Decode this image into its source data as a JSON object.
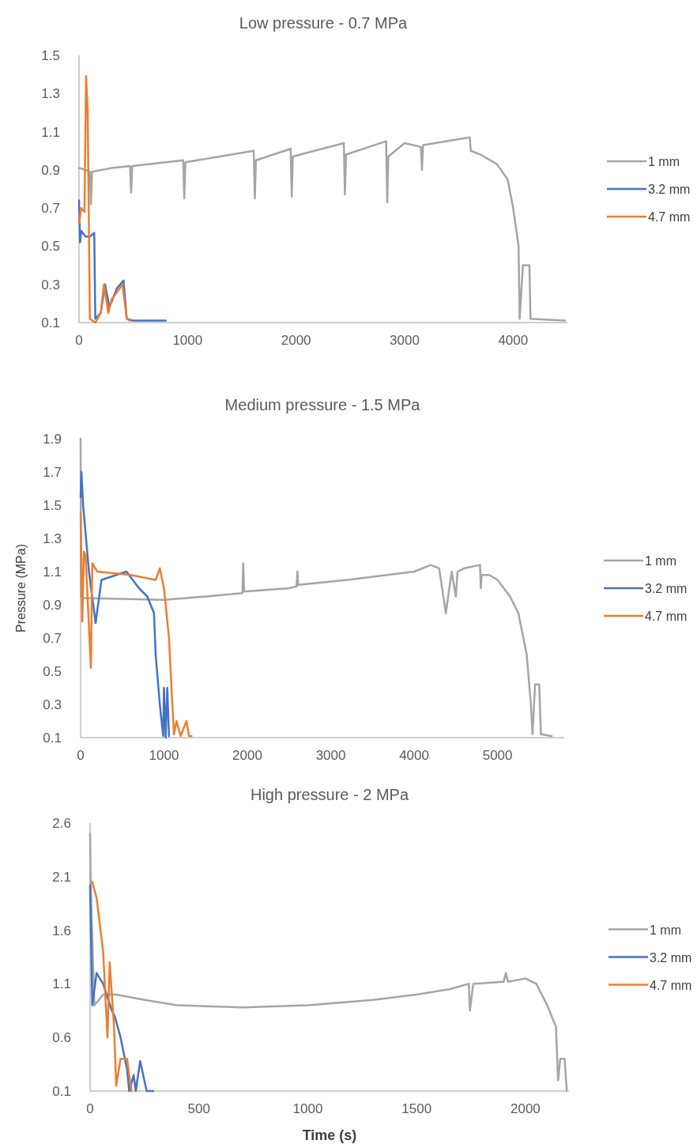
{
  "chart_data": [
    {
      "type": "line",
      "title": "Low pressure - 0.7 MPa",
      "xlim": [
        0,
        4500
      ],
      "xticks": [
        0,
        1000,
        2000,
        3000,
        4000
      ],
      "ylim": [
        0.1,
        1.5
      ],
      "yticks": [
        {
          "value": 0.1,
          "label": "0.1"
        },
        {
          "value": 0.3,
          "label": "0.3"
        },
        {
          "value": 0.5,
          "label": "0.5"
        },
        {
          "value": 0.7,
          "label": "0.7"
        },
        {
          "value": 0.9,
          "label": "0.9"
        },
        {
          "value": 1.1,
          "label": "1.1"
        },
        {
          "value": 1.3,
          "label": "1.3"
        },
        {
          "value": 1.5,
          "label": "1.5"
        }
      ],
      "grid": false,
      "legend": "right",
      "series": [
        {
          "name": "1 mm",
          "color": "#a5a5a5",
          "x": [
            0,
            60,
            100,
            110,
            120,
            300,
            470,
            480,
            490,
            960,
            970,
            980,
            1610,
            1620,
            1630,
            1950,
            1960,
            1970,
            2440,
            2450,
            2460,
            2830,
            2840,
            2850,
            3000,
            3150,
            3160,
            3170,
            3600,
            3610,
            3700,
            3850,
            3950,
            4000,
            4050,
            4060,
            4090,
            4150,
            4160,
            4480
          ],
          "values": [
            0.91,
            0.9,
            0.89,
            0.72,
            0.89,
            0.91,
            0.92,
            0.78,
            0.92,
            0.95,
            0.75,
            0.94,
            1.0,
            0.75,
            0.95,
            1.01,
            0.76,
            0.97,
            1.04,
            0.77,
            0.98,
            1.05,
            0.73,
            0.97,
            1.04,
            1.02,
            0.9,
            1.03,
            1.07,
            1.0,
            0.98,
            0.93,
            0.85,
            0.7,
            0.5,
            0.12,
            0.4,
            0.4,
            0.12,
            0.11
          ]
        },
        {
          "name": "3.2 mm",
          "color": "#4472c4",
          "x": [
            0,
            10,
            20,
            60,
            100,
            140,
            150,
            200,
            240,
            280,
            350,
            410,
            440,
            500,
            800
          ],
          "values": [
            0.74,
            0.52,
            0.58,
            0.55,
            0.55,
            0.57,
            0.12,
            0.15,
            0.3,
            0.18,
            0.28,
            0.32,
            0.12,
            0.11,
            0.11
          ]
        },
        {
          "name": "4.7 mm",
          "color": "#ed7d31",
          "x": [
            0,
            20,
            50,
            65,
            80,
            100,
            150,
            200,
            230,
            270,
            300,
            400,
            440,
            470
          ],
          "values": [
            0.62,
            0.7,
            0.68,
            1.39,
            1.2,
            0.12,
            0.1,
            0.15,
            0.3,
            0.15,
            0.22,
            0.3,
            0.12,
            0.11
          ]
        }
      ]
    },
    {
      "type": "line",
      "title": "Medium pressure - 1.5 MPa",
      "ylabel": "Pressure (MPa)",
      "xlim": [
        0,
        5800
      ],
      "xticks": [
        0,
        1000,
        2000,
        3000,
        4000,
        5000
      ],
      "ylim": [
        0.1,
        1.9
      ],
      "yticks": [
        {
          "value": 0.1,
          "label": "0.1"
        },
        {
          "value": 0.3,
          "label": "0.3"
        },
        {
          "value": 0.5,
          "label": "0.5"
        },
        {
          "value": 0.7,
          "label": "0.7"
        },
        {
          "value": 0.9,
          "label": "0.9"
        },
        {
          "value": 1.1,
          "label": "1.1"
        },
        {
          "value": 1.3,
          "label": "1.3"
        },
        {
          "value": 1.5,
          "label": "1.5"
        },
        {
          "value": 1.7,
          "label": "1.7"
        },
        {
          "value": 1.9,
          "label": "1.9"
        }
      ],
      "grid": false,
      "legend": "right",
      "series": [
        {
          "name": "1 mm",
          "color": "#a5a5a5",
          "x": [
            0,
            5,
            50,
            1000,
            1500,
            1940,
            1950,
            1960,
            2500,
            2590,
            2600,
            2610,
            3200,
            4000,
            4200,
            4300,
            4380,
            4450,
            4500,
            4520,
            4600,
            4790,
            4800,
            4810,
            4900,
            5000,
            5150,
            5250,
            5350,
            5400,
            5420,
            5450,
            5500,
            5520,
            5650
          ],
          "values": [
            1.9,
            0.95,
            0.94,
            0.93,
            0.95,
            0.97,
            1.15,
            0.98,
            1.0,
            1.01,
            1.1,
            1.02,
            1.05,
            1.1,
            1.14,
            1.12,
            0.85,
            1.1,
            0.95,
            1.1,
            1.12,
            1.14,
            1.0,
            1.08,
            1.08,
            1.05,
            0.95,
            0.85,
            0.6,
            0.3,
            0.12,
            0.42,
            0.42,
            0.12,
            0.11
          ]
        },
        {
          "name": "3.2 mm",
          "color": "#4472c4",
          "x": [
            0,
            10,
            30,
            100,
            180,
            250,
            550,
            700,
            800,
            880,
            900,
            950,
            990,
            1000,
            1020,
            1040,
            1060
          ],
          "values": [
            1.55,
            1.7,
            1.5,
            1.1,
            0.79,
            1.05,
            1.1,
            1.0,
            0.95,
            0.85,
            0.6,
            0.3,
            0.11,
            0.4,
            0.1,
            0.4,
            0.11
          ]
        },
        {
          "name": "4.7 mm",
          "color": "#ed7d31",
          "x": [
            0,
            20,
            40,
            60,
            123,
            140,
            200,
            600,
            900,
            950,
            1000,
            1060,
            1100,
            1120,
            1150,
            1200,
            1270,
            1300,
            1330
          ],
          "values": [
            1.45,
            0.8,
            1.22,
            1.2,
            0.52,
            1.15,
            1.1,
            1.08,
            1.05,
            1.12,
            1.0,
            0.7,
            0.3,
            0.12,
            0.2,
            0.11,
            0.2,
            0.11,
            0.11
          ]
        }
      ]
    },
    {
      "type": "line",
      "title": "High pressure - 2 MPa",
      "xlabel": "Time (s)",
      "xlim": [
        0,
        2200
      ],
      "xticks": [
        0,
        500,
        1000,
        1500,
        2000
      ],
      "ylim": [
        0.1,
        2.6
      ],
      "yticks": [
        0.1,
        0.6,
        1.1,
        1.6,
        2.1,
        2.6
      ],
      "grid": false,
      "legend": "right",
      "series": [
        {
          "name": "1 mm",
          "color": "#a5a5a5",
          "x": [
            0,
            3,
            20,
            60,
            120,
            250,
            400,
            700,
            1000,
            1300,
            1500,
            1650,
            1740,
            1745,
            1760,
            1900,
            1910,
            1920,
            2000,
            2050,
            2100,
            2140,
            2150,
            2160,
            2180,
            2190
          ],
          "values": [
            2.5,
            2.0,
            0.9,
            1.0,
            1.0,
            0.95,
            0.9,
            0.88,
            0.9,
            0.95,
            1.0,
            1.05,
            1.1,
            0.85,
            1.1,
            1.12,
            1.2,
            1.12,
            1.15,
            1.1,
            0.9,
            0.7,
            0.2,
            0.4,
            0.4,
            0.1
          ]
        },
        {
          "name": "3.2 mm",
          "color": "#4472c4",
          "x": [
            0,
            10,
            30,
            60,
            100,
            113,
            140,
            170,
            180,
            200,
            210,
            230,
            260,
            290
          ],
          "values": [
            2.02,
            0.9,
            1.2,
            1.1,
            0.85,
            0.8,
            0.6,
            0.3,
            0.1,
            0.25,
            0.1,
            0.38,
            0.1,
            0.1
          ]
        },
        {
          "name": "4.7 mm",
          "color": "#ed7d31",
          "x": [
            10,
            30,
            60,
            80,
            90,
            110,
            120,
            140,
            170,
            190
          ],
          "values": [
            2.05,
            1.9,
            1.4,
            0.6,
            1.3,
            0.7,
            0.15,
            0.4,
            0.4,
            0.1
          ]
        }
      ]
    }
  ]
}
